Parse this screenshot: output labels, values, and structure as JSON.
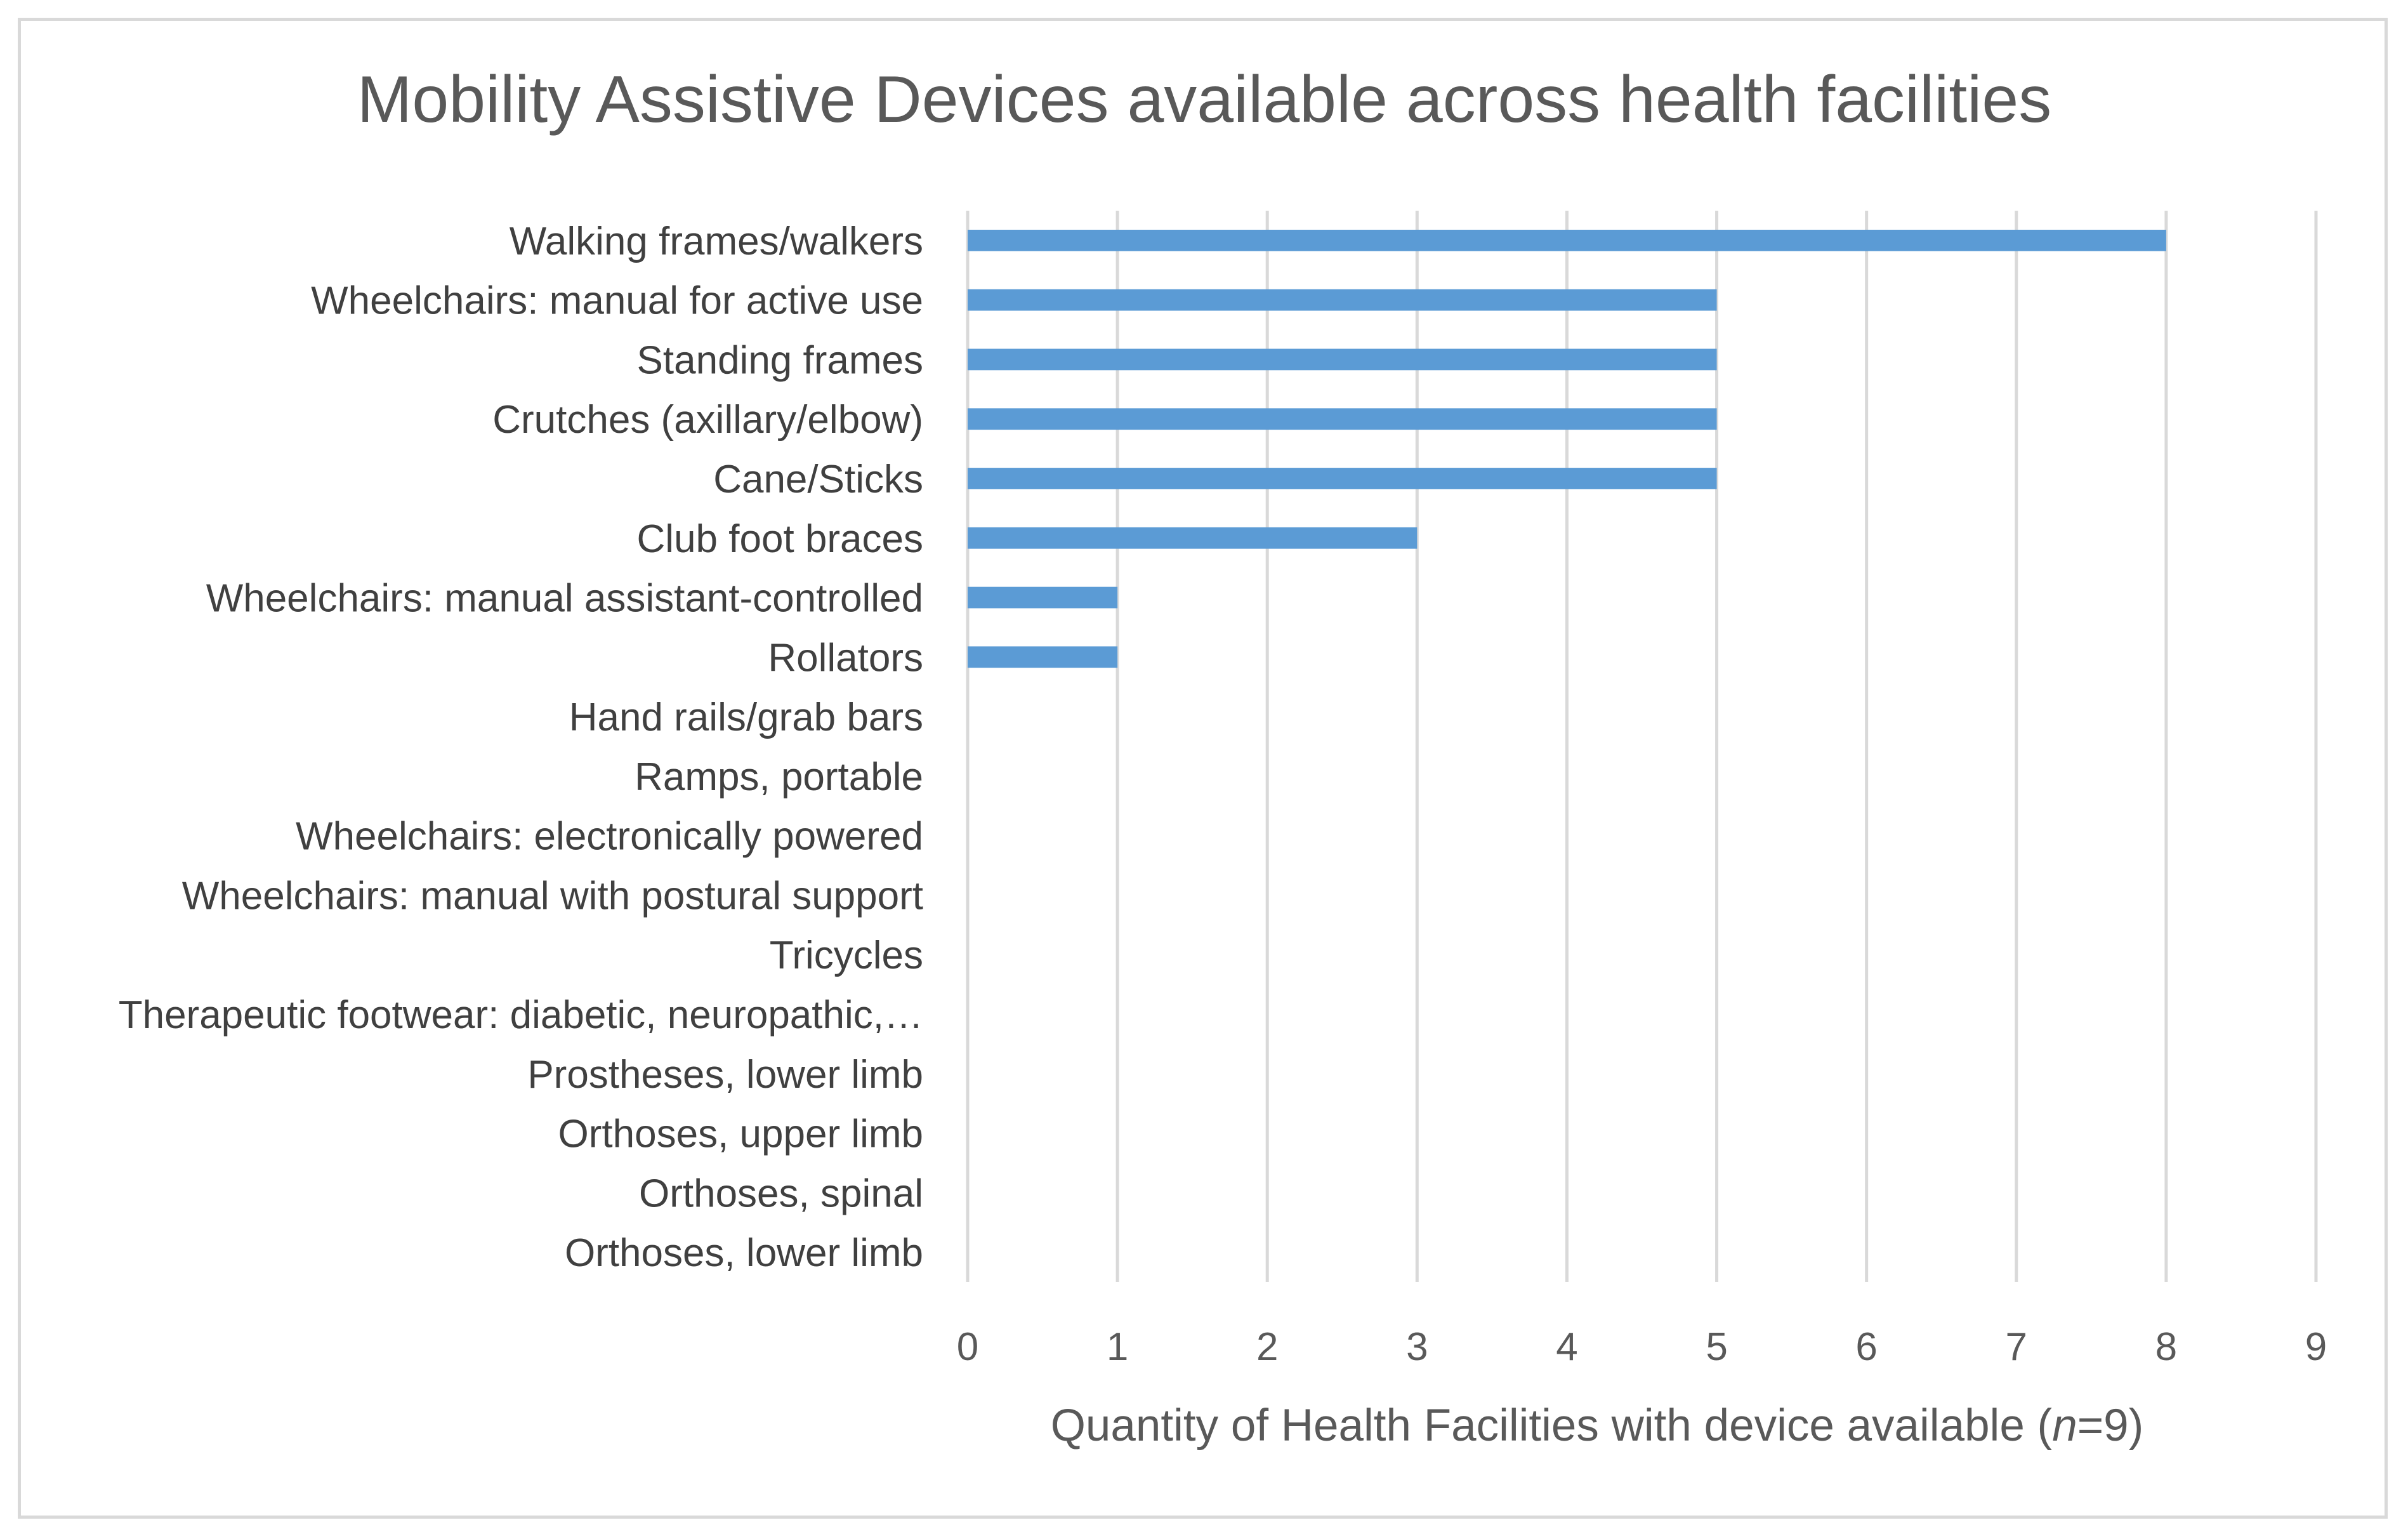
{
  "chart_data": {
    "type": "bar",
    "orientation": "horizontal",
    "title": "Mobility Assistive Devices available across health facilities",
    "xlabel": "Quantity of Health Facilities with device available (n=9)",
    "xlabel_parts": {
      "before": "Quantity of Health Facilities with device available (",
      "italic": "n",
      "after": "=9)"
    },
    "ylabel": "",
    "xlim": [
      0,
      9
    ],
    "x_ticks": [
      "0",
      "1",
      "2",
      "3",
      "4",
      "5",
      "6",
      "7",
      "8",
      "9"
    ],
    "grid": true,
    "bar_color": "#5b9bd5",
    "categories": [
      "Walking frames/walkers",
      "Wheelchairs: manual for active use",
      "Standing frames",
      "Crutches (axillary/elbow)",
      "Cane/Sticks",
      "Club foot braces",
      "Wheelchairs: manual assistant-controlled",
      "Rollators",
      "Hand rails/grab bars",
      "Ramps, portable",
      "Wheelchairs: electronically powered",
      "Wheelchairs: manual with postural support",
      "Tricycles",
      "Therapeutic footwear: diabetic, neuropathic,…",
      "Prostheses, lower limb",
      "Orthoses, upper limb",
      "Orthoses, spinal",
      "Orthoses, lower limb"
    ],
    "values": [
      8,
      5,
      5,
      5,
      5,
      3,
      1,
      1,
      0,
      0,
      0,
      0,
      0,
      0,
      0,
      0,
      0,
      0
    ]
  }
}
